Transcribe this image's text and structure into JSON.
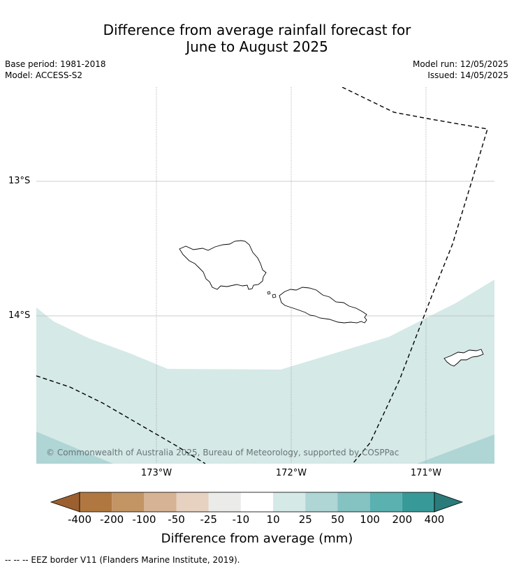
{
  "title_line1": "Difference from average rainfall forecast for",
  "title_line2": "June to August 2025",
  "meta": {
    "base_period": "Base period: 1981-2018",
    "model": "Model: ACCESS-S2",
    "model_run": "Model run: 12/05/2025",
    "issued": "Issued: 14/05/2025"
  },
  "map": {
    "lat_labels": [
      "13°S",
      "14°S"
    ],
    "lon_labels": [
      "173°W",
      "172°W",
      "171°W"
    ],
    "copyright": "© Commonwealth of Australia 2025, Bureau of Meteorology, supported by COSPPac",
    "colors": {
      "band_10_25": "#d5e9e7",
      "band_25_50": "#afd5d5",
      "eez_line": "#000000",
      "coast": "#000000",
      "grid": "#999999"
    }
  },
  "colorbar": {
    "ticks": [
      "-400",
      "-200",
      "-100",
      "-50",
      "-25",
      "-10",
      "10",
      "25",
      "50",
      "100",
      "200",
      "400"
    ],
    "colors": [
      "#9c6030",
      "#b07840",
      "#c39464",
      "#d6b394",
      "#e7d1c0",
      "#ebebea",
      "#ffffff",
      "#d5e9e7",
      "#afd5d5",
      "#85c2c2",
      "#5bb0b0",
      "#379a98",
      "#2b7b7b"
    ],
    "title": "Difference from average (mm)"
  },
  "footer": "--  --  -- EEZ border V11 (Flanders Marine Institute, 2019)."
}
